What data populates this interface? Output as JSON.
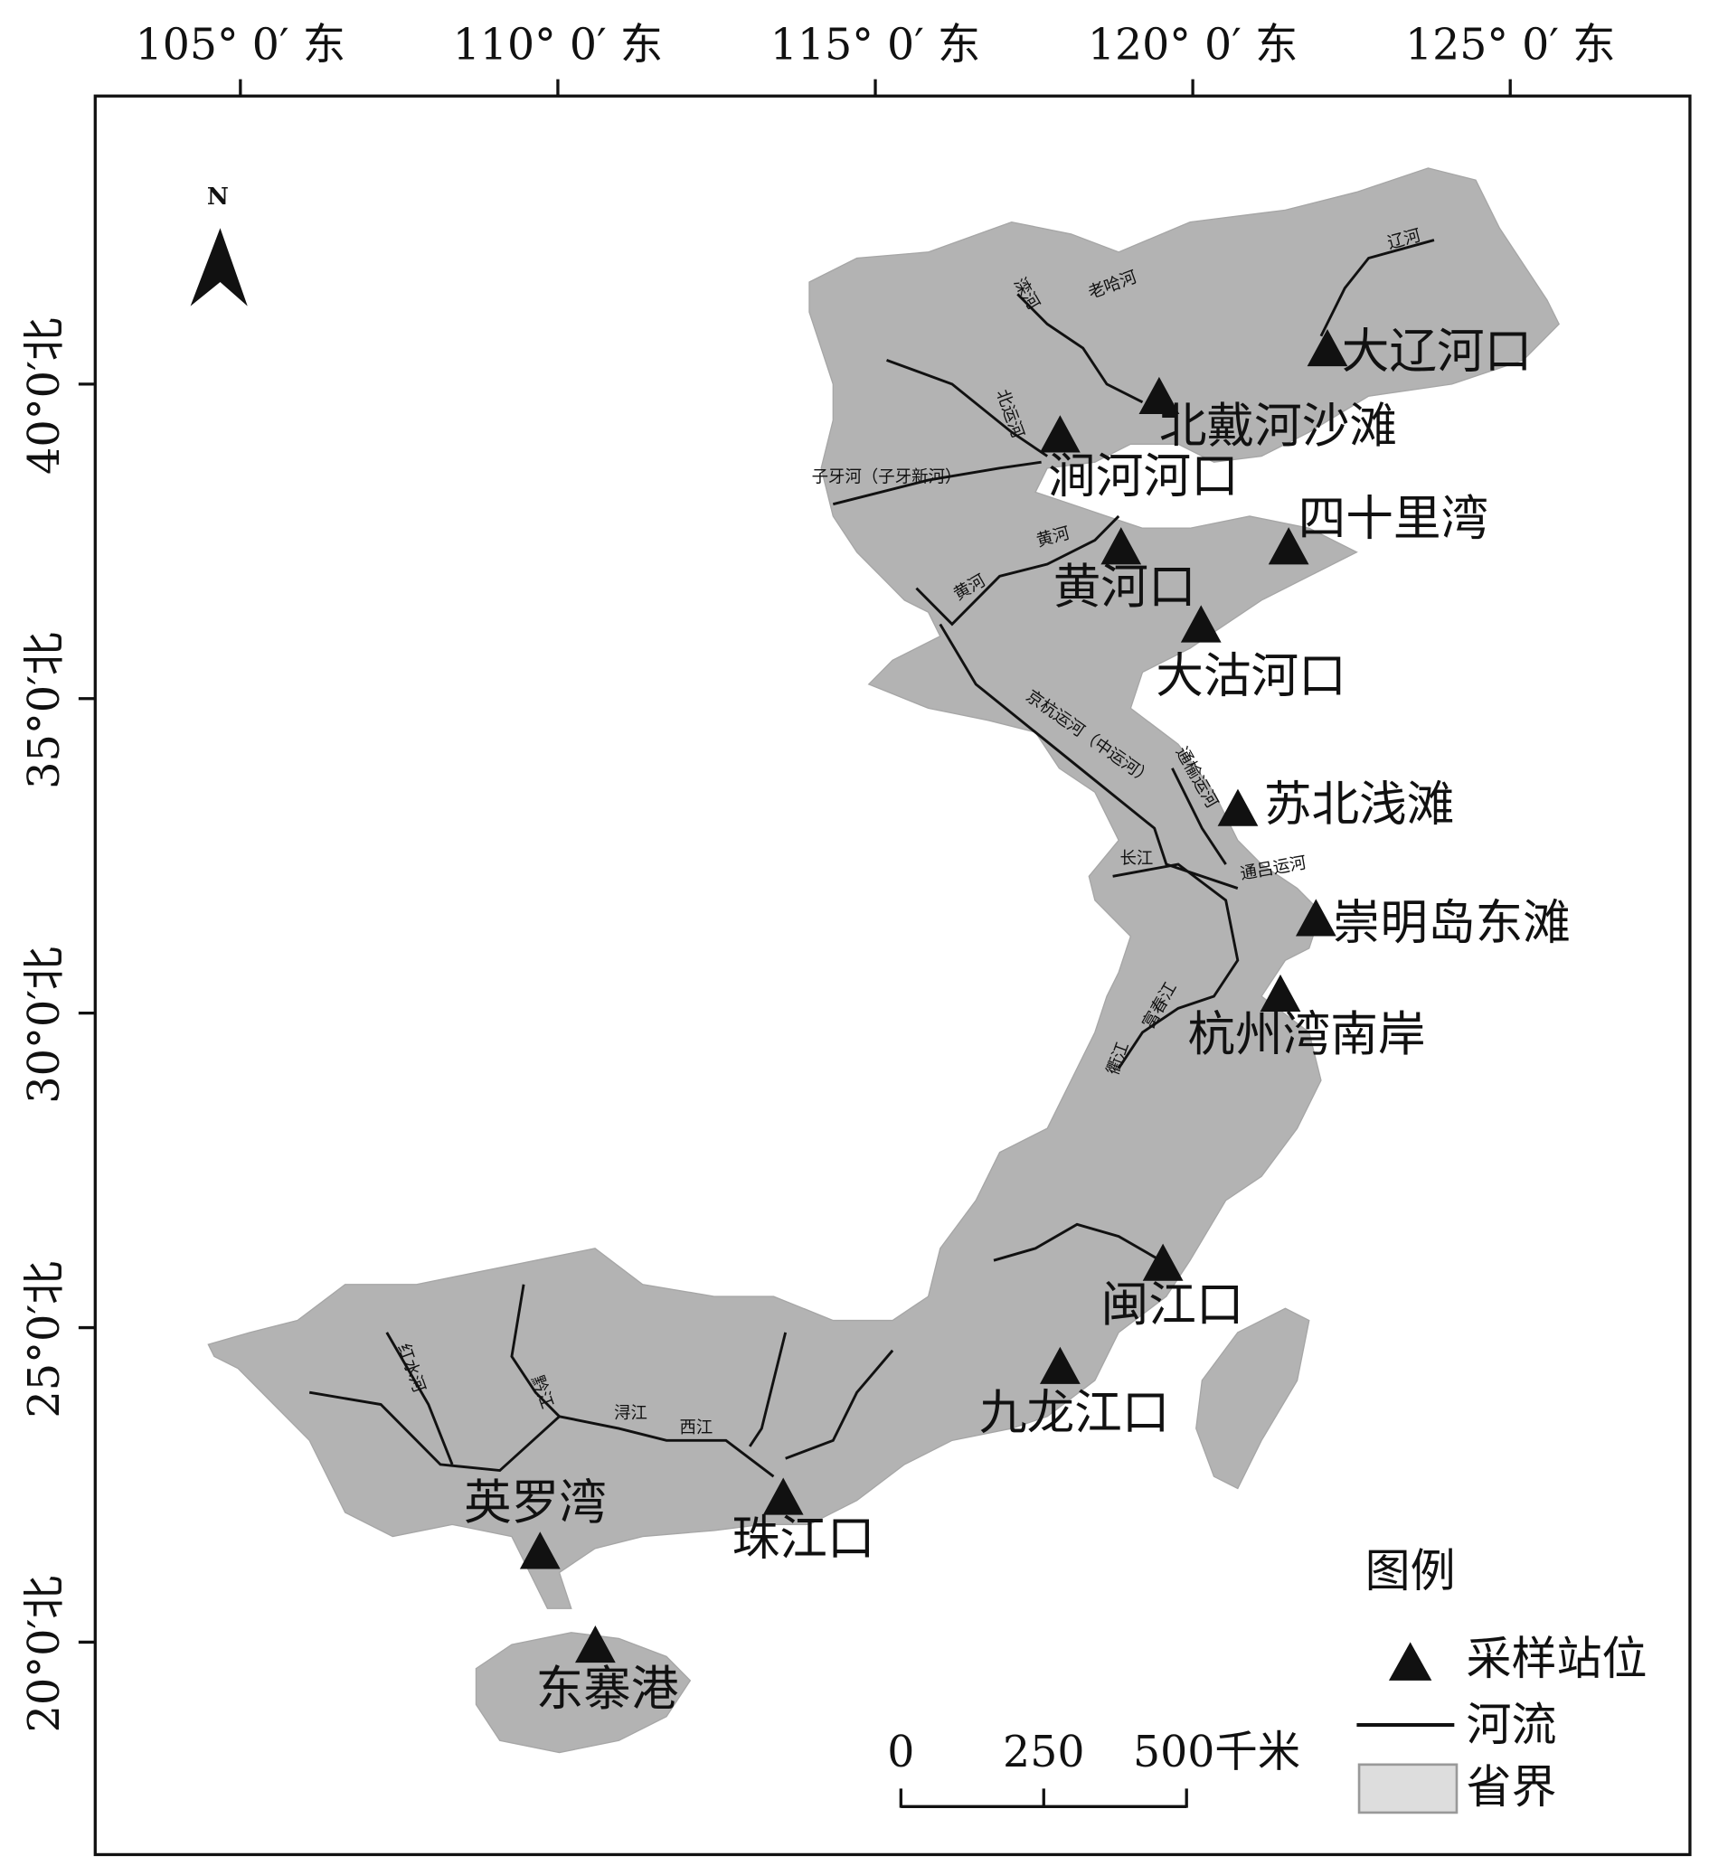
{
  "map": {
    "north_label": "N",
    "lon_ticks": [
      {
        "value": 105,
        "label": "105° 0′ 东"
      },
      {
        "value": 110,
        "label": "110° 0′ 东"
      },
      {
        "value": 115,
        "label": "115° 0′ 东"
      },
      {
        "value": 120,
        "label": "120° 0′ 东"
      },
      {
        "value": 125,
        "label": "125° 0′ 东"
      }
    ],
    "lat_ticks": [
      {
        "value": 40,
        "label": "40°0′北"
      },
      {
        "value": 35,
        "label": "35°0′北"
      },
      {
        "value": 30,
        "label": "30°0′北"
      },
      {
        "value": 25,
        "label": "25°0′北"
      },
      {
        "value": 20,
        "label": "20°0′北"
      }
    ],
    "stations": [
      {
        "name": "大辽河口",
        "lon": 122.12,
        "lat": 40.57
      },
      {
        "name": "北戴河沙滩",
        "lon": 119.47,
        "lat": 39.81
      },
      {
        "name": "涧河河口",
        "lon": 117.91,
        "lat": 39.2
      },
      {
        "name": "四十里湾",
        "lon": 121.51,
        "lat": 37.42
      },
      {
        "name": "黄河口",
        "lon": 118.87,
        "lat": 37.42
      },
      {
        "name": "大沽河口",
        "lon": 120.13,
        "lat": 36.18
      },
      {
        "name": "苏北浅滩",
        "lon": 120.71,
        "lat": 33.26
      },
      {
        "name": "崇明岛东滩",
        "lon": 121.94,
        "lat": 31.51
      },
      {
        "name": "杭州湾南岸",
        "lon": 121.38,
        "lat": 30.31
      },
      {
        "name": "闽江口",
        "lon": 119.53,
        "lat": 26.03
      },
      {
        "name": "九龙江口",
        "lon": 117.91,
        "lat": 24.39
      },
      {
        "name": "珠江口",
        "lon": 113.55,
        "lat": 22.31
      },
      {
        "name": "英罗湾",
        "lon": 109.72,
        "lat": 21.45
      },
      {
        "name": "东寨港",
        "lon": 110.59,
        "lat": 19.96
      }
    ],
    "river_labels": [
      "辽河",
      "老哈河",
      "滦河",
      "北运河",
      "子牙河（子牙新河）",
      "黄河",
      "黄河",
      "京杭运河（中运河）",
      "通榆运河",
      "长江",
      "通吕运河",
      "富春江",
      "衢江",
      "红水河",
      "黔江",
      "浔江",
      "西江"
    ],
    "scale_bar": [
      0,
      250,
      {
        "value": 500,
        "label": "500千米"
      }
    ],
    "legend": {
      "title": "图例",
      "items": [
        "采样站位",
        "河流",
        "省界"
      ]
    }
  }
}
